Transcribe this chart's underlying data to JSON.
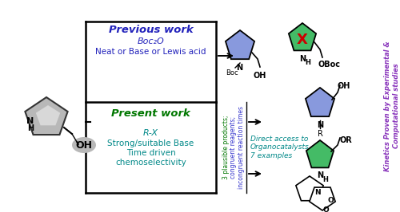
{
  "bg_color": "#ffffff",
  "previous_work_text": "Previous work",
  "present_work_text": "Present work",
  "boc2o_line1": "Boc₂O",
  "boc2o_line2": "Neat or Base or Lewis acid",
  "rx_line1": "R-X",
  "rx_line2": "Strong/suitable Base",
  "rx_line3": "Time driven",
  "rx_line4": "chemoselectivity",
  "middle_text_line1": "3 plausible products;",
  "middle_text_line2": "congruent reagents;",
  "middle_text_line3": "incongruent reaction times",
  "direct_access_line1": "Direct access to",
  "direct_access_line2": "Organocatalysts",
  "direct_access_line3": "7 examples",
  "right_text": "Kinetics Proven by Experimental &\nComputational studies",
  "color_dark_blue": "#2222BB",
  "color_green_text": "#007700",
  "color_teal": "#008888",
  "color_blue_mid": "#3333CC",
  "color_purple_text": "#8833BB",
  "color_red": "#CC0000",
  "color_ring_purple": "#8899DD",
  "color_ring_green": "#44BB66",
  "color_gray_ring": "#AAAAAA",
  "color_black": "#000000"
}
